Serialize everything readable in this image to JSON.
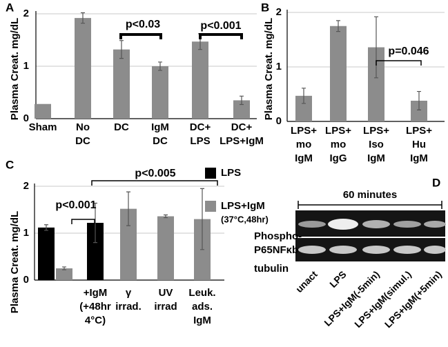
{
  "chart_data": [
    {
      "type": "bar",
      "panel": "A",
      "ylabel": "Plasma Creat. mg/dL",
      "categories": [
        [
          "Sham"
        ],
        [
          "No",
          "DC"
        ],
        [
          "DC"
        ],
        [
          "IgM",
          "DC"
        ],
        [
          "DC+",
          "LPS"
        ],
        [
          "DC+",
          "LPS+IgM"
        ]
      ],
      "values": [
        0.28,
        1.92,
        1.32,
        1.0,
        1.47,
        0.35
      ],
      "errors": [
        null,
        0.1,
        0.17,
        0.08,
        0.15,
        0.08
      ],
      "color": "#8c8c8c",
      "ylim": [
        0,
        2
      ],
      "yticks": [
        0,
        1,
        2
      ],
      "grid": true,
      "annotations": [
        "p<0.03",
        "p<0.001"
      ]
    },
    {
      "type": "bar",
      "panel": "B",
      "ylabel": "Plasma Creat. mg/dL",
      "categories": [
        [
          "LPS+",
          "mo",
          "IgM"
        ],
        [
          "LPS+",
          "mo",
          "IgG"
        ],
        [
          "LPS+",
          "Iso",
          "IgM"
        ],
        [
          "LPS+",
          "Hu",
          "IgM"
        ]
      ],
      "values": [
        0.47,
        1.75,
        1.36,
        0.38
      ],
      "errors": [
        0.14,
        0.1,
        0.56,
        0.17
      ],
      "color": "#8c8c8c",
      "ylim": [
        0,
        2
      ],
      "yticks": [
        0,
        1,
        2
      ],
      "grid": true,
      "annotations": [
        "p=0.046"
      ]
    },
    {
      "type": "bar",
      "panel": "C",
      "ylabel": "Plasma Creat. mg/dL",
      "categories": [
        null,
        null,
        [
          "+IgM",
          "(+48hr",
          "4°C)"
        ],
        [
          "γ",
          "irrad."
        ],
        [
          "UV",
          "irrad"
        ],
        [
          "Leuk.",
          "ads.",
          "IgM"
        ]
      ],
      "series": [
        {
          "name": [
            "LPS"
          ],
          "color": "#000000",
          "values": [
            1.12,
            null,
            1.22,
            null,
            null,
            null
          ],
          "errors": [
            0.06,
            null,
            0.42,
            null,
            null,
            null
          ]
        },
        {
          "name": [
            "LPS+IgM",
            "(37°C,48hr)"
          ],
          "color": "#8c8c8c",
          "values": [
            null,
            0.25,
            null,
            1.52,
            1.36,
            1.3
          ],
          "errors": [
            null,
            0.03,
            null,
            0.36,
            0.03,
            0.65
          ]
        }
      ],
      "ylim": [
        0,
        2
      ],
      "yticks": [
        0,
        1,
        2
      ],
      "grid": true,
      "annotations": [
        "p<0.001",
        "p<0.005"
      ]
    }
  ],
  "blot": {
    "panel": "D",
    "title": "60 minutes",
    "row_labels": [
      "Phospho-",
      "P65NFκb",
      "tubulin"
    ],
    "lanes": [
      "unact",
      "LPS",
      "LPS+IgM(-5min)",
      "LPS+IgM(simul.)",
      "LPS+IgM(+5min)"
    ]
  }
}
